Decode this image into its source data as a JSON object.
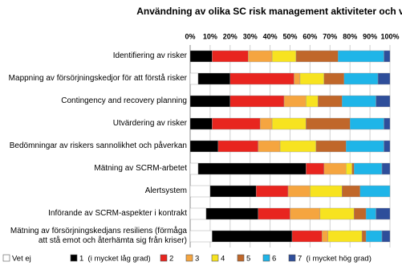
{
  "chart_data": {
    "type": "stacked-bar-horizontal",
    "title": "Användning av olika SC risk management aktiviteter och verktyg",
    "categories": [
      "Identifiering av risker",
      "Mappning av försörjningskedjor för att förstå risker",
      "Contingency and recovery planning",
      "Utvärdering av risker",
      "Bedömningar av riskers sannolikhet och påverkan",
      "Mätning av SCRM-arbetet",
      "Alertsystem",
      "Införande av SCRM-aspekter i kontrakt",
      "Mätning av försörjningskedjans resiliens (förmåga\natt stå emot och återhämta sig från kriser)"
    ],
    "series": [
      {
        "name": "Vet ej",
        "color": "#ffffff",
        "values": [
          0,
          4,
          0,
          0,
          0,
          4,
          10,
          8,
          11
        ]
      },
      {
        "name": "1  (i mycket låg grad)",
        "color": "#000000",
        "values": [
          11,
          16,
          20,
          11,
          14,
          54,
          23,
          26,
          40
        ]
      },
      {
        "name": "2",
        "color": "#e8251f",
        "values": [
          18,
          32,
          27,
          24,
          20,
          9,
          16,
          16,
          15
        ]
      },
      {
        "name": "3",
        "color": "#f5a540",
        "values": [
          12,
          3,
          11,
          6,
          11,
          11,
          11,
          15,
          3
        ]
      },
      {
        "name": "4",
        "color": "#f7e320",
        "values": [
          12,
          12,
          6,
          17,
          18,
          3,
          16,
          17,
          17
        ]
      },
      {
        "name": "5",
        "color": "#c0672a",
        "values": [
          21,
          10,
          12,
          22,
          15,
          1,
          9,
          6,
          2
        ]
      },
      {
        "name": "6",
        "color": "#1fb5e8",
        "values": [
          23,
          17,
          17,
          17,
          19,
          14,
          15,
          5,
          8
        ]
      },
      {
        "name": "7  (i mycket hög grad)",
        "color": "#2e4e9a",
        "values": [
          3,
          6,
          7,
          3,
          3,
          4,
          0,
          7,
          4
        ]
      }
    ],
    "xlim": [
      0,
      100
    ],
    "xticks": [
      {
        "value": 0,
        "label": "0%"
      },
      {
        "value": 10,
        "label": "10%"
      },
      {
        "value": 20,
        "label": "20%"
      },
      {
        "value": 30,
        "label": "30%"
      },
      {
        "value": 40,
        "label": "40%"
      },
      {
        "value": 50,
        "label": "50%"
      },
      {
        "value": 60,
        "label": "60%"
      },
      {
        "value": 70,
        "label": "70%"
      },
      {
        "value": 80,
        "label": "80%"
      },
      {
        "value": 90,
        "label": "90%"
      },
      {
        "value": 100,
        "label": "100%"
      }
    ],
    "grid": true
  }
}
